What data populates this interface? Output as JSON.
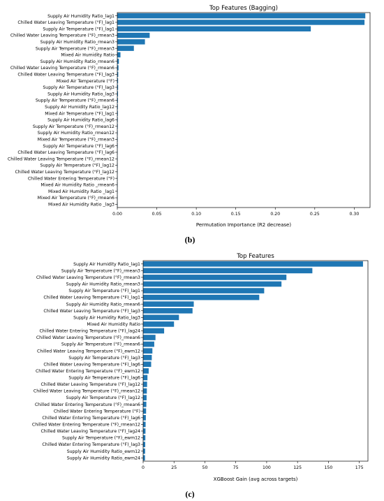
{
  "panels": [
    {
      "label": "(b)"
    },
    {
      "label": "(c)"
    }
  ],
  "chart_data": [
    {
      "type": "bar",
      "orientation": "horizontal",
      "title": "Top Features (Bagging)",
      "xlabel": "Permutation Importance (R2 decrease)",
      "ylabel": "",
      "xlim": [
        0,
        0.32
      ],
      "xticks": [
        "0.00",
        "0.05",
        "0.10",
        "0.15",
        "0.20",
        "0.25",
        "0.30"
      ],
      "color": "#1f77b4",
      "categories": [
        "Supply Air Humidity Ratio_lag1",
        "Chilled Water Leaving Temperature (°F)_lag1",
        "Supply Air Temperature (°F)_lag1",
        "Chilled Water Leaving Temperature (°F)_rmean3",
        "Supply Air Humidity Ratio_rmean3",
        "Supply Air Temperature (°F)_rmean3",
        "Mixed Air Humidity Ratio",
        "Supply Air Humidity Ratio_rmean6",
        "Chilled Water Leaving Temperature (°F)_rmean6",
        "Chilled Water Leaving Temperature (°F)_lag3",
        "Mixed Air Temperature (°F)",
        "Supply Air Temperature (°F)_lag3",
        "Supply Air Humidity Ratio_lag3",
        "Supply Air Temperature (°F)_rmean6",
        "Supply Air Humidity Ratio_lag12",
        "Mixed Air Temperature (°F)_lag1",
        "Supply Air Humidity Ratio_lag6",
        "Supply Air Temperature (°F)_rmean12",
        "Supply Air Humidity Ratio_rmean12",
        "Mixed Air Temperature (°F)_rmean3",
        "Supply Air Temperature (°F)_lag6",
        "Chilled Water Leaving Temperature (°F)_lag6",
        "Chilled Water Leaving Temperature (°F)_rmean12",
        "Supply Air Temperature (°F)_lag12",
        "Chilled Water Leaving Temperature (°F)_lag12",
        "Chilled Water Entering Temperature (°F)",
        "Mixed Air Humidity Ratio _rmean6",
        "Mixed Air Humidity Ratio _lag1",
        "Mixed Air Temperature (°F)_rmean6",
        "Mixed Air Humidity Ratio _lag3"
      ],
      "values": [
        0.314,
        0.313,
        0.245,
        0.041,
        0.035,
        0.021,
        0.004,
        0.002,
        0.0015,
        0.0012,
        0.001,
        0.001,
        0.0009,
        0.0008,
        0.0007,
        0.0007,
        0.0006,
        0.0006,
        0.0005,
        0.0005,
        0.0005,
        0.0004,
        0.0004,
        0.0004,
        0.0003,
        0.0003,
        0.0003,
        0.0002,
        0.0002,
        0.0002
      ]
    },
    {
      "type": "bar",
      "orientation": "horizontal",
      "title": "Top Features",
      "xlabel": "XGBoost Gain (avg across targets)",
      "ylabel": "",
      "xlim": [
        0,
        182
      ],
      "xticks": [
        "0",
        "25",
        "50",
        "75",
        "100",
        "125",
        "150",
        "175"
      ],
      "color": "#1f77b4",
      "categories": [
        "Supply Air Humidity Ratio_lag1",
        "Supply Air Temperature (°F)_rmean3",
        "Chilled Water Leaving Temperature (°F)_rmean3",
        "Supply Air Humidity Ratio_rmean3",
        "Supply Air Temperature (°F)_lag1",
        "Chilled Water Leaving Temperature (°F)_lag1",
        "Supply Air Humidity Ratio_rmean6",
        "Chilled Water Leaving Temperature (°F)_lag3",
        "Supply Air Humidity Ratio_lag3",
        "Mixed Air Humidity Ratio",
        "Chilled Water Entering Temperature (°F)_lag24",
        "Chilled Water Leaving Temperature (°F)_rmean6",
        "Supply Air Temperature (°F)_rmean6",
        "Chilled Water Leaving Temperature (°F)_ewm12",
        "Supply Air Temperature (°F)_lag3",
        "Chilled Water Leaving Temperature (°F)_lag6",
        "Chilled Water Entering Temperature (°F)_ewm12",
        "Supply Air Temperature (°F)_lag6",
        "Chilled Water Leaving Temperature (°F)_lag12",
        "Chilled Water Leaving Temperature (°F)_rmean12",
        "Supply Air Temperature (°F)_lag12",
        "Chilled Water Entering Temperature (°F)_rmean6",
        "Chilled Water Entering Temperature (°F)",
        "Chilled Water Entering Temperature (°F)_lag6",
        "Chilled Water Entering Temperature (°F)_rmean12",
        "Chilled Water Leaving Temperature (°F)_lag24",
        "Supply Air Temperature (°F)_ewm12",
        "Chilled Water Entering Temperature (°F)_lag3",
        "Supply Air Humidity Ratio_ewm12",
        "Supply Air Humidity Ratio_ewm24"
      ],
      "values": [
        178,
        137,
        116,
        112,
        98,
        94,
        41,
        40,
        29,
        25,
        17,
        10,
        9,
        7.5,
        7,
        6.5,
        4.5,
        3.5,
        3.2,
        3,
        2.8,
        2.6,
        2.4,
        2.2,
        2,
        1.9,
        1.8,
        1.7,
        1.6,
        1.5
      ]
    }
  ]
}
